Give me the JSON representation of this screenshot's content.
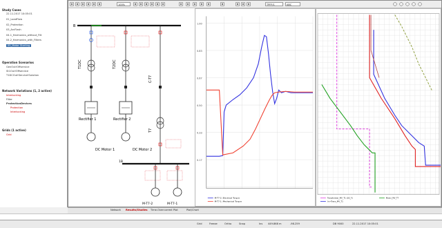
{
  "tree": {
    "study_case": {
      "title": "Study Cases",
      "date": "22.11.2017 10:05:01"
    },
    "cases": [
      {
        "label": "01_LoadFlow",
        "selected": false
      },
      {
        "label": "02_Protection",
        "selected": false
      },
      {
        "label": "03_ArcFlash",
        "selected": false
      },
      {
        "label": "04.1_Harmonics_without_Filt",
        "selected": false
      },
      {
        "label": "04.2_Harmonics_with_Filters",
        "selected": false
      },
      {
        "label": "05_Motor Starting",
        "selected": true
      }
    ],
    "operation": {
      "title": "Operation Scenarios",
      "items": [
        "GenOut!Offservice",
        "St1Out!Offservice",
        "T1DCOut!Service!Solution"
      ]
    },
    "network": {
      "title": "Network Variations (1, 2 active)",
      "items": [
        "Interlocking",
        "Filter"
      ]
    },
    "protection": {
      "title": "ProtectionDevices",
      "items": [
        "Protection",
        "Interlocking"
      ]
    },
    "grids": {
      "title": "Grids (1 active)",
      "items": [
        "Grid"
      ]
    }
  },
  "toolbar": {
    "zoom": "100%",
    "field2": "TPFP/1",
    "field3": "ABC"
  },
  "diagram": {
    "busbar_top": "B",
    "busbar_bottom": "1B",
    "transformers": [
      "T1DC",
      "T2DC",
      "C-T7",
      "T7"
    ],
    "rectifiers": [
      "Rectifier 1",
      "Rectifier 2"
    ],
    "motors_dc": [
      "DC Motor 1",
      "DC Motor 2"
    ],
    "motors_ac": [
      "M-T7-2",
      "M-T7-1"
    ],
    "note_color": "#e0202a"
  },
  "plot1": {
    "y_ticks": [
      "1.00",
      "0.83",
      "0.67",
      "0.50",
      "0.33",
      "0.17"
    ],
    "legend": [
      "M-T7-2: Electrical Torque",
      "M-T7-1: Mechanical Torque"
    ],
    "colors": {
      "blue": "#3030e0",
      "red": "#f04030"
    }
  },
  "plot2": {
    "legend": [
      "Transformer_MV_T1 (OC_F)",
      "I>>Trans_MV_T1",
      "Motor_MV_T7"
    ],
    "colors": {
      "magenta": "#e040e0",
      "green": "#20a020",
      "red": "#e02020",
      "blue": "#3030e0",
      "olive": "#90a040"
    }
  },
  "tabs": [
    "Network",
    "Results/Studies",
    "Time-Overcurrent Plot",
    "Plot/Chart"
  ],
  "status": {
    "items": [
      "Grid",
      "Freeze",
      "Ortho",
      "Snap",
      "Ins",
      "449.868 m",
      "-98.259",
      "DB 9000",
      "22.11.2017 10:05:01"
    ]
  }
}
